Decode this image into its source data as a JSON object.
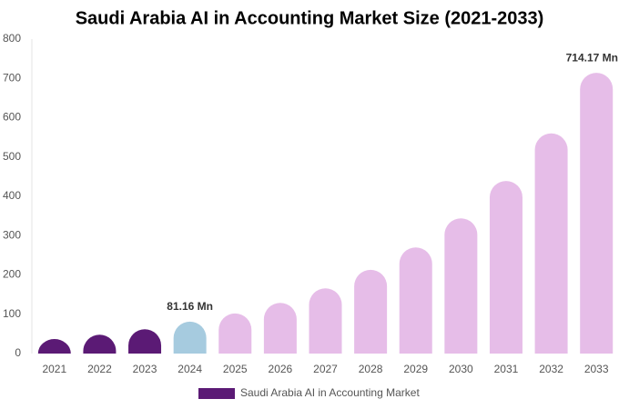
{
  "chart_data": {
    "type": "bar",
    "title": "Saudi Arabia AI in Accounting Market Size (2021-2033)",
    "categories": [
      "2021",
      "2022",
      "2023",
      "2024",
      "2025",
      "2026",
      "2027",
      "2028",
      "2029",
      "2030",
      "2031",
      "2032",
      "2033"
    ],
    "series": [
      {
        "name": "Saudi Arabia AI in Accounting Market",
        "color": "#5b1a75",
        "values": [
          37,
          48,
          62,
          81.16,
          102,
          129,
          166,
          213,
          270,
          344,
          439,
          560,
          714.17
        ],
        "value_labels": [
          null,
          null,
          null,
          "81.16 Mn",
          null,
          null,
          null,
          null,
          null,
          null,
          null,
          null,
          "714.17 Mn"
        ],
        "bar_colors": [
          "#5b1a75",
          "#5b1a75",
          "#5b1a75",
          "#a6cbdf",
          "#e6bde8",
          "#e6bde8",
          "#e6bde8",
          "#e6bde8",
          "#e6bde8",
          "#e6bde8",
          "#e6bde8",
          "#e6bde8",
          "#e6bde8"
        ]
      }
    ],
    "ylim": [
      0,
      800
    ],
    "yticks": [
      0,
      100,
      200,
      300,
      400,
      500,
      600,
      700,
      800
    ],
    "grid": false,
    "legend": "bottom"
  }
}
